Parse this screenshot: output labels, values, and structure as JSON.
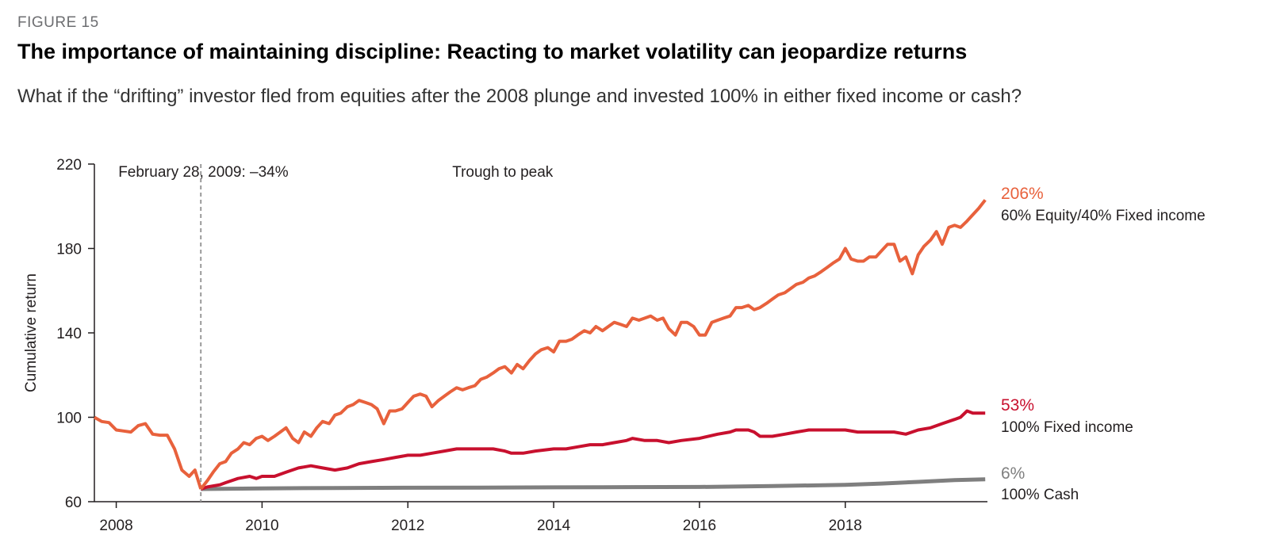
{
  "figure_label": "FIGURE 15",
  "title": "The importance of maintaining discipline: Reacting to market volatility can jeopardize returns",
  "subtitle": "What if the “drifting” investor fled from equities after the 2008 plunge and invested 100% in either fixed income or cash?",
  "colors": {
    "equity": "#e8613c",
    "fixed": "#c8102e",
    "cash": "#7f7f7f",
    "axis": "#231f20",
    "marker": "#9a9a9a"
  },
  "chart_data": {
    "type": "line",
    "ylabel": "Cumulative return",
    "ylim": [
      60,
      220
    ],
    "yticks": [
      60,
      100,
      140,
      180,
      220
    ],
    "xlim": [
      2007.7,
      2019.95
    ],
    "xticks": [
      2008,
      2010,
      2012,
      2014,
      2016,
      2018
    ],
    "xtick_labels": [
      "2008",
      "2010",
      "2012",
      "2014",
      "2016",
      "2018"
    ],
    "marker": {
      "x": 2009.16,
      "label": "February 28, 2009: –34%"
    },
    "annotation": "Trough to peak",
    "pre_trough": [
      [
        2007.7,
        100
      ],
      [
        2007.8,
        98
      ],
      [
        2007.9,
        97.5
      ],
      [
        2008.0,
        94
      ],
      [
        2008.1,
        93.5
      ],
      [
        2008.2,
        93
      ],
      [
        2008.3,
        96
      ],
      [
        2008.4,
        97
      ],
      [
        2008.5,
        92
      ],
      [
        2008.6,
        91.5
      ],
      [
        2008.7,
        91.5
      ],
      [
        2008.8,
        85
      ],
      [
        2008.9,
        75
      ],
      [
        2009.0,
        72
      ],
      [
        2009.08,
        75
      ],
      [
        2009.16,
        66
      ]
    ],
    "series": [
      {
        "key": "equity",
        "name": "60% Equity/40% Fixed income",
        "end_label": "206%",
        "points": [
          [
            2009.16,
            66
          ],
          [
            2009.25,
            70
          ],
          [
            2009.33,
            74
          ],
          [
            2009.42,
            78
          ],
          [
            2009.5,
            79
          ],
          [
            2009.58,
            83
          ],
          [
            2009.67,
            85
          ],
          [
            2009.75,
            88
          ],
          [
            2009.83,
            87
          ],
          [
            2009.92,
            90
          ],
          [
            2010.0,
            91
          ],
          [
            2010.08,
            89
          ],
          [
            2010.17,
            91
          ],
          [
            2010.25,
            93
          ],
          [
            2010.33,
            95
          ],
          [
            2010.42,
            90
          ],
          [
            2010.5,
            88
          ],
          [
            2010.58,
            93
          ],
          [
            2010.67,
            91
          ],
          [
            2010.75,
            95
          ],
          [
            2010.83,
            98
          ],
          [
            2010.92,
            97
          ],
          [
            2011.0,
            101
          ],
          [
            2011.08,
            102
          ],
          [
            2011.17,
            105
          ],
          [
            2011.25,
            106
          ],
          [
            2011.33,
            108
          ],
          [
            2011.42,
            107
          ],
          [
            2011.5,
            106
          ],
          [
            2011.58,
            104
          ],
          [
            2011.67,
            97
          ],
          [
            2011.75,
            103
          ],
          [
            2011.83,
            103
          ],
          [
            2011.92,
            104
          ],
          [
            2012.0,
            107
          ],
          [
            2012.08,
            110
          ],
          [
            2012.17,
            111
          ],
          [
            2012.25,
            110
          ],
          [
            2012.33,
            105
          ],
          [
            2012.42,
            108
          ],
          [
            2012.5,
            110
          ],
          [
            2012.58,
            112
          ],
          [
            2012.67,
            114
          ],
          [
            2012.75,
            113
          ],
          [
            2012.83,
            114
          ],
          [
            2012.92,
            115
          ],
          [
            2013.0,
            118
          ],
          [
            2013.08,
            119
          ],
          [
            2013.17,
            121
          ],
          [
            2013.25,
            123
          ],
          [
            2013.33,
            124
          ],
          [
            2013.42,
            121
          ],
          [
            2013.5,
            125
          ],
          [
            2013.58,
            123
          ],
          [
            2013.67,
            127
          ],
          [
            2013.75,
            130
          ],
          [
            2013.83,
            132
          ],
          [
            2013.92,
            133
          ],
          [
            2014.0,
            131
          ],
          [
            2014.08,
            136
          ],
          [
            2014.17,
            136
          ],
          [
            2014.25,
            137
          ],
          [
            2014.33,
            139
          ],
          [
            2014.42,
            141
          ],
          [
            2014.5,
            140
          ],
          [
            2014.58,
            143
          ],
          [
            2014.67,
            141
          ],
          [
            2014.75,
            143
          ],
          [
            2014.83,
            145
          ],
          [
            2014.92,
            144
          ],
          [
            2015.0,
            143
          ],
          [
            2015.08,
            147
          ],
          [
            2015.17,
            146
          ],
          [
            2015.25,
            147
          ],
          [
            2015.33,
            148
          ],
          [
            2015.42,
            146
          ],
          [
            2015.5,
            147
          ],
          [
            2015.58,
            142
          ],
          [
            2015.67,
            139
          ],
          [
            2015.75,
            145
          ],
          [
            2015.83,
            145
          ],
          [
            2015.92,
            143
          ],
          [
            2016.0,
            139
          ],
          [
            2016.08,
            139
          ],
          [
            2016.17,
            145
          ],
          [
            2016.25,
            146
          ],
          [
            2016.33,
            147
          ],
          [
            2016.42,
            148
          ],
          [
            2016.5,
            152
          ],
          [
            2016.58,
            152
          ],
          [
            2016.67,
            153
          ],
          [
            2016.75,
            151
          ],
          [
            2016.83,
            152
          ],
          [
            2016.92,
            154
          ],
          [
            2017.0,
            156
          ],
          [
            2017.08,
            158
          ],
          [
            2017.17,
            159
          ],
          [
            2017.25,
            161
          ],
          [
            2017.33,
            163
          ],
          [
            2017.42,
            164
          ],
          [
            2017.5,
            166
          ],
          [
            2017.58,
            167
          ],
          [
            2017.67,
            169
          ],
          [
            2017.75,
            171
          ],
          [
            2017.83,
            173
          ],
          [
            2017.92,
            175
          ],
          [
            2018.0,
            180
          ],
          [
            2018.08,
            175
          ],
          [
            2018.17,
            174
          ],
          [
            2018.25,
            174
          ],
          [
            2018.33,
            176
          ],
          [
            2018.42,
            176
          ],
          [
            2018.5,
            179
          ],
          [
            2018.58,
            182
          ],
          [
            2018.67,
            182
          ],
          [
            2018.75,
            174
          ],
          [
            2018.83,
            176
          ],
          [
            2018.92,
            168
          ],
          [
            2019.0,
            177
          ],
          [
            2019.08,
            181
          ],
          [
            2019.17,
            184
          ],
          [
            2019.25,
            188
          ],
          [
            2019.33,
            182
          ],
          [
            2019.42,
            190
          ],
          [
            2019.5,
            191
          ],
          [
            2019.58,
            190
          ],
          [
            2019.67,
            193
          ],
          [
            2019.75,
            196
          ],
          [
            2019.83,
            199
          ],
          [
            2019.92,
            203
          ]
        ]
      },
      {
        "key": "fixed",
        "name": "100% Fixed income",
        "end_label": "53%",
        "points": [
          [
            2009.16,
            66
          ],
          [
            2009.25,
            67
          ],
          [
            2009.42,
            68
          ],
          [
            2009.5,
            69
          ],
          [
            2009.67,
            71
          ],
          [
            2009.83,
            72
          ],
          [
            2009.92,
            71
          ],
          [
            2010.0,
            72
          ],
          [
            2010.17,
            72
          ],
          [
            2010.33,
            74
          ],
          [
            2010.5,
            76
          ],
          [
            2010.67,
            77
          ],
          [
            2010.83,
            76
          ],
          [
            2011.0,
            75
          ],
          [
            2011.17,
            76
          ],
          [
            2011.33,
            78
          ],
          [
            2011.5,
            79
          ],
          [
            2011.67,
            80
          ],
          [
            2011.83,
            81
          ],
          [
            2012.0,
            82
          ],
          [
            2012.17,
            82
          ],
          [
            2012.33,
            83
          ],
          [
            2012.5,
            84
          ],
          [
            2012.67,
            85
          ],
          [
            2012.83,
            85
          ],
          [
            2013.0,
            85
          ],
          [
            2013.17,
            85
          ],
          [
            2013.33,
            84
          ],
          [
            2013.42,
            83
          ],
          [
            2013.58,
            83
          ],
          [
            2013.75,
            84
          ],
          [
            2014.0,
            85
          ],
          [
            2014.17,
            85
          ],
          [
            2014.33,
            86
          ],
          [
            2014.5,
            87
          ],
          [
            2014.67,
            87
          ],
          [
            2014.83,
            88
          ],
          [
            2015.0,
            89
          ],
          [
            2015.08,
            90
          ],
          [
            2015.25,
            89
          ],
          [
            2015.42,
            89
          ],
          [
            2015.58,
            88
          ],
          [
            2015.75,
            89
          ],
          [
            2016.0,
            90
          ],
          [
            2016.25,
            92
          ],
          [
            2016.42,
            93
          ],
          [
            2016.5,
            94
          ],
          [
            2016.67,
            94
          ],
          [
            2016.75,
            93
          ],
          [
            2016.83,
            91
          ],
          [
            2017.0,
            91
          ],
          [
            2017.17,
            92
          ],
          [
            2017.33,
            93
          ],
          [
            2017.5,
            94
          ],
          [
            2017.67,
            94
          ],
          [
            2017.83,
            94
          ],
          [
            2018.0,
            94
          ],
          [
            2018.17,
            93
          ],
          [
            2018.33,
            93
          ],
          [
            2018.5,
            93
          ],
          [
            2018.67,
            93
          ],
          [
            2018.83,
            92
          ],
          [
            2019.0,
            94
          ],
          [
            2019.17,
            95
          ],
          [
            2019.33,
            97
          ],
          [
            2019.5,
            99
          ],
          [
            2019.58,
            100
          ],
          [
            2019.67,
            103
          ],
          [
            2019.75,
            102
          ],
          [
            2019.92,
            102
          ]
        ]
      },
      {
        "key": "cash",
        "name": "100% Cash",
        "end_label": "6%",
        "points": [
          [
            2009.16,
            66
          ],
          [
            2010.0,
            66.3
          ],
          [
            2011.0,
            66.5
          ],
          [
            2012.0,
            66.6
          ],
          [
            2013.0,
            66.7
          ],
          [
            2014.0,
            66.8
          ],
          [
            2015.0,
            66.9
          ],
          [
            2016.0,
            67
          ],
          [
            2017.0,
            67.4
          ],
          [
            2018.0,
            68
          ],
          [
            2018.5,
            68.6
          ],
          [
            2019.0,
            69.4
          ],
          [
            2019.5,
            70.2
          ],
          [
            2019.92,
            70.6
          ]
        ]
      }
    ]
  }
}
